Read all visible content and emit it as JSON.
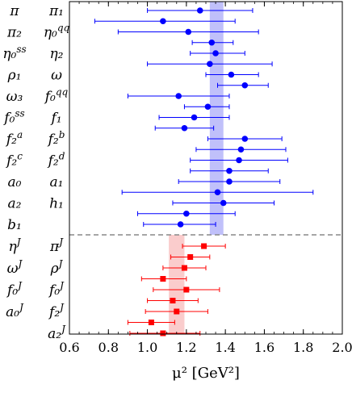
{
  "chart_data": {
    "type": "scatter",
    "xlabel": "μ² [GeV²]",
    "xlim": [
      0.6,
      2.0
    ],
    "xticks": [
      0.6,
      0.8,
      1.0,
      1.2,
      1.4,
      1.6,
      1.8,
      2.0
    ],
    "xtick_labels": [
      "0.6",
      "0.8",
      "1.0",
      "1.2",
      "1.4",
      "1.6",
      "1.8",
      "2.0"
    ],
    "grid": false,
    "bands": [
      {
        "group": "blue",
        "x_range": [
          1.32,
          1.39
        ],
        "color": "#8d8df5"
      },
      {
        "group": "red",
        "x_range": [
          1.11,
          1.19
        ],
        "color": "#f5a3a3"
      }
    ],
    "divider_between_groups": "dashed",
    "series": [
      {
        "group": "blue",
        "marker": "circle",
        "color": "#0000ff",
        "points": [
          {
            "left": "π",
            "right": "π₁",
            "value": 1.27,
            "err": [
              1.0,
              1.54
            ]
          },
          {
            "left": "",
            "right": "",
            "value": 1.08,
            "err": [
              0.73,
              1.45
            ]
          },
          {
            "left": "π₂",
            "right": "η₀^qq",
            "value": 1.21,
            "err": [
              0.85,
              1.57
            ]
          },
          {
            "left": "",
            "right": "",
            "value": 1.33,
            "err": [
              1.23,
              1.44
            ]
          },
          {
            "left": "η₀^ss",
            "right": "η₂",
            "value": 1.35,
            "err": [
              1.22,
              1.5
            ]
          },
          {
            "left": "",
            "right": "",
            "value": 1.32,
            "err": [
              1.0,
              1.64
            ]
          },
          {
            "left": "ρ₁",
            "right": "ω",
            "value": 1.43,
            "err": [
              1.3,
              1.57
            ]
          },
          {
            "left": "",
            "right": "",
            "value": 1.5,
            "err": [
              1.36,
              1.62
            ]
          },
          {
            "left": "ω₃",
            "right": "f₀^qq",
            "value": 1.16,
            "err": [
              0.9,
              1.42
            ]
          },
          {
            "left": "",
            "right": "",
            "value": 1.31,
            "err": [
              1.19,
              1.42
            ]
          },
          {
            "left": "f₀^ss",
            "right": "f₁",
            "value": 1.24,
            "err": [
              1.06,
              1.42
            ]
          },
          {
            "left": "",
            "right": "",
            "value": 1.19,
            "err": [
              1.04,
              1.34
            ]
          },
          {
            "left": "f₂^a",
            "right": "f₂^b",
            "value": 1.5,
            "err": [
              1.31,
              1.69
            ]
          },
          {
            "left": "",
            "right": "",
            "value": 1.48,
            "err": [
              1.25,
              1.71
            ]
          },
          {
            "left": "f₂^c",
            "right": "f₂^d",
            "value": 1.47,
            "err": [
              1.22,
              1.72
            ]
          },
          {
            "left": "",
            "right": "",
            "value": 1.42,
            "err": [
              1.22,
              1.62
            ]
          },
          {
            "left": "a₀",
            "right": "a₁",
            "value": 1.42,
            "err": [
              1.16,
              1.68
            ]
          },
          {
            "left": "",
            "right": "",
            "value": 1.36,
            "err": [
              0.87,
              1.85
            ]
          },
          {
            "left": "a₂",
            "right": "h₁",
            "value": 1.39,
            "err": [
              1.13,
              1.65
            ]
          },
          {
            "left": "",
            "right": "",
            "value": 1.2,
            "err": [
              0.95,
              1.45
            ]
          },
          {
            "left": "b₁",
            "right": "",
            "value": 1.17,
            "err": [
              0.98,
              1.35
            ]
          }
        ]
      },
      {
        "group": "red",
        "marker": "square",
        "color": "#ff0000",
        "points": [
          {
            "left": "η^J",
            "right": "π^J",
            "value": 1.29,
            "err": [
              1.18,
              1.4
            ]
          },
          {
            "left": "",
            "right": "",
            "value": 1.22,
            "err": [
              1.12,
              1.32
            ]
          },
          {
            "left": "ω^J",
            "right": "ρ^J",
            "value": 1.19,
            "err": [
              1.08,
              1.3
            ]
          },
          {
            "left": "",
            "right": "",
            "value": 1.08,
            "err": [
              0.97,
              1.2
            ]
          },
          {
            "left": "f₀^J",
            "right": "f₀^J",
            "value": 1.2,
            "err": [
              1.03,
              1.37
            ]
          },
          {
            "left": "",
            "right": "",
            "value": 1.13,
            "err": [
              1.0,
              1.26
            ]
          },
          {
            "left": "a₀^J",
            "right": "f₂^J",
            "value": 1.15,
            "err": [
              0.99,
              1.31
            ]
          },
          {
            "left": "",
            "right": "",
            "value": 1.02,
            "err": [
              0.9,
              1.14
            ]
          },
          {
            "left": "",
            "right": "a₂^J",
            "value": 1.08,
            "err": [
              0.91,
              1.27
            ]
          }
        ]
      }
    ]
  }
}
